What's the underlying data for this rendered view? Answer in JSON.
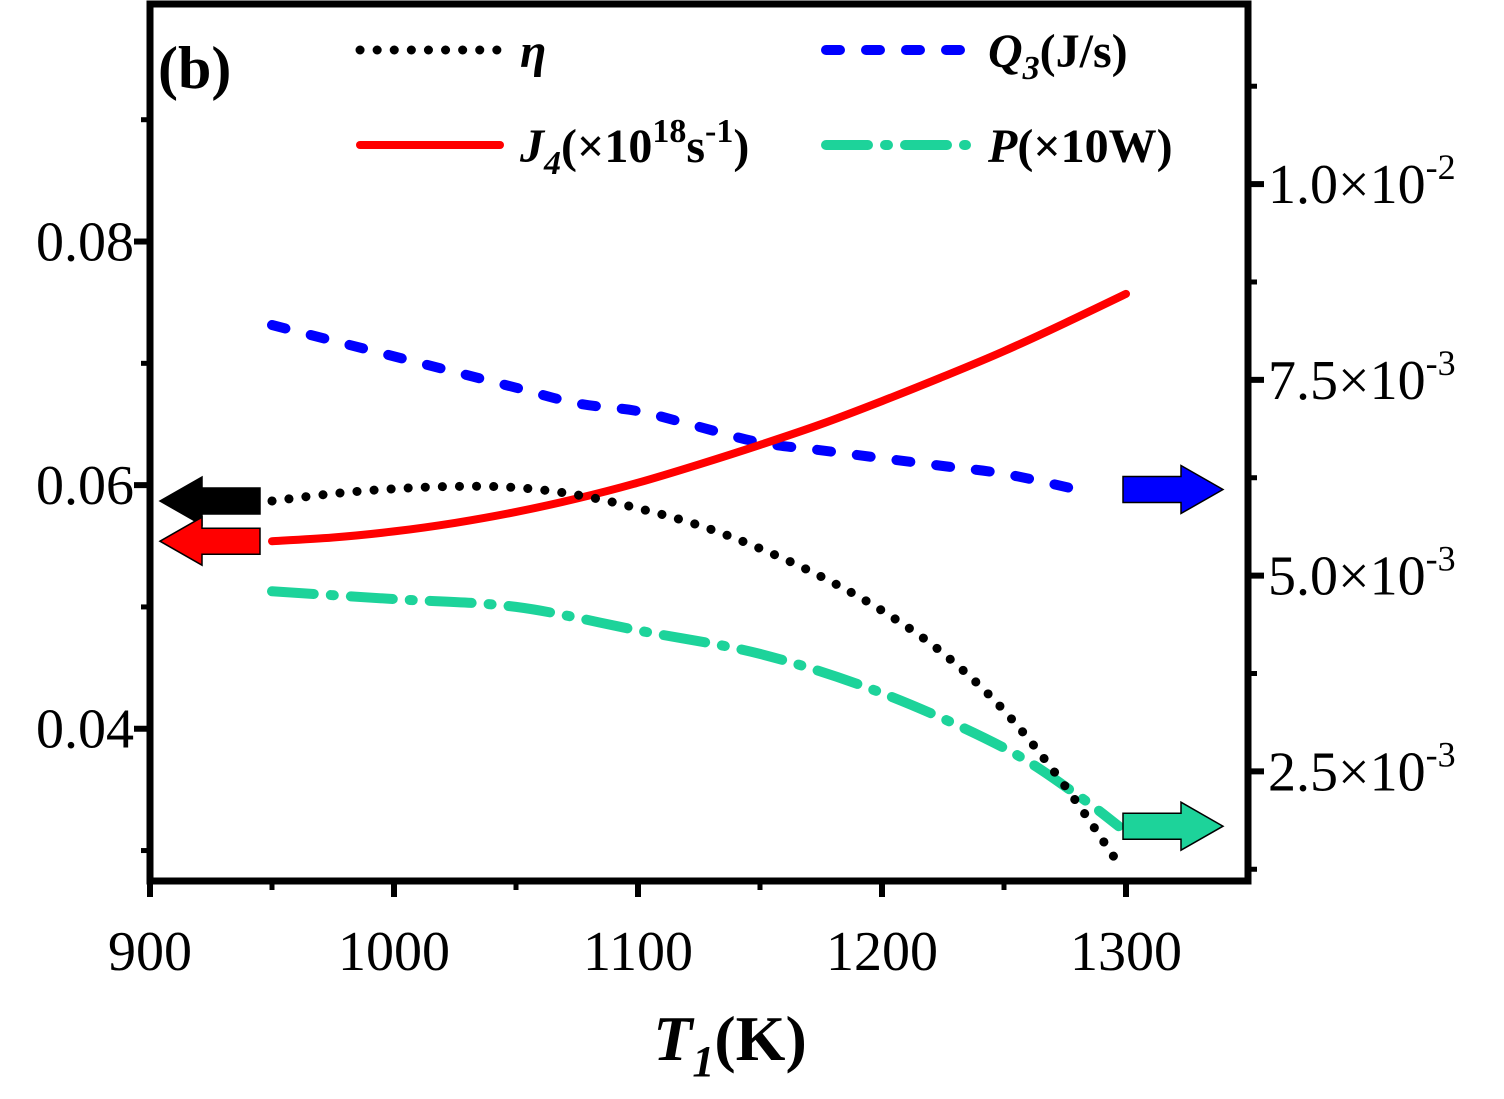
{
  "chart_data": {
    "type": "line",
    "panel_label": "(b)",
    "xlabel": {
      "main": "T",
      "sub": "1",
      "unit": "(K)"
    },
    "x_ticks": [
      900,
      1000,
      1100,
      1200,
      1300
    ],
    "xlim": [
      900,
      1350
    ],
    "ylim_left": [
      0.0275,
      0.0995
    ],
    "ylim_right": [
      0.0011,
      0.0123
    ],
    "left_ticks": [
      {
        "value": 0.04,
        "label": "0.04"
      },
      {
        "value": 0.06,
        "label": "0.06"
      },
      {
        "value": 0.08,
        "label": "0.08"
      }
    ],
    "right_ticks": [
      {
        "value": 0.0025,
        "mantissa": "2.5×10",
        "exponent": "-3"
      },
      {
        "value": 0.005,
        "mantissa": "5.0×10",
        "exponent": "-3"
      },
      {
        "value": 0.0075,
        "mantissa": "7.5×10",
        "exponent": "-3"
      },
      {
        "value": 0.01,
        "mantissa": "1.0×10",
        "exponent": "-2"
      }
    ],
    "series": [
      {
        "name": "eta",
        "axis": "left",
        "color": "#000000",
        "style": "dotted",
        "legend": {
          "main": "η",
          "sub": "",
          "rest": ""
        },
        "points": [
          [
            950,
            0.0587
          ],
          [
            975,
            0.0593
          ],
          [
            1000,
            0.0597
          ],
          [
            1025,
            0.0599
          ],
          [
            1050,
            0.0598
          ],
          [
            1075,
            0.0592
          ],
          [
            1100,
            0.0581
          ],
          [
            1125,
            0.0567
          ],
          [
            1150,
            0.0548
          ],
          [
            1175,
            0.0525
          ],
          [
            1200,
            0.0497
          ],
          [
            1225,
            0.0462
          ],
          [
            1250,
            0.0415
          ],
          [
            1275,
            0.0353
          ],
          [
            1297,
            0.0289
          ]
        ]
      },
      {
        "name": "Q3",
        "axis": "right",
        "color": "#0000ff",
        "style": "dashed",
        "legend": {
          "main": "Q",
          "sub": "3",
          "rest": "(J/s)"
        },
        "points": [
          [
            950,
            0.0082
          ],
          [
            975,
            0.008
          ],
          [
            1000,
            0.0078
          ],
          [
            1025,
            0.0076
          ],
          [
            1050,
            0.0074
          ],
          [
            1075,
            0.0072
          ],
          [
            1100,
            0.0071
          ],
          [
            1125,
            0.0069
          ],
          [
            1150,
            0.0067
          ],
          [
            1175,
            0.0066
          ],
          [
            1200,
            0.0065
          ],
          [
            1225,
            0.0064
          ],
          [
            1250,
            0.0063
          ],
          [
            1280,
            0.0061
          ]
        ]
      },
      {
        "name": "J4",
        "axis": "left",
        "color": "#ff0000",
        "style": "solid",
        "legend": {
          "main": "J",
          "sub": "4",
          "rest": "(×10",
          "sup": "18",
          "rest2": "s",
          "sup2": "-1",
          "rest3": ")"
        },
        "points": [
          [
            950,
            0.0554
          ],
          [
            975,
            0.0557
          ],
          [
            1000,
            0.0562
          ],
          [
            1025,
            0.0569
          ],
          [
            1050,
            0.0578
          ],
          [
            1075,
            0.0589
          ],
          [
            1100,
            0.0602
          ],
          [
            1125,
            0.0617
          ],
          [
            1150,
            0.0633
          ],
          [
            1175,
            0.065
          ],
          [
            1200,
            0.0669
          ],
          [
            1225,
            0.0689
          ],
          [
            1250,
            0.071
          ],
          [
            1275,
            0.0733
          ],
          [
            1300,
            0.0757
          ]
        ]
      },
      {
        "name": "P",
        "axis": "right",
        "color": "#1dd39a",
        "style": "dashdot",
        "legend": {
          "main": "P",
          "sub": "",
          "rest": "(×10W)"
        },
        "points": [
          [
            950,
            0.0048
          ],
          [
            1000,
            0.0047
          ],
          [
            1050,
            0.0046
          ],
          [
            1100,
            0.0043
          ],
          [
            1150,
            0.004
          ],
          [
            1200,
            0.0035
          ],
          [
            1250,
            0.0028
          ],
          [
            1280,
            0.0022
          ],
          [
            1297,
            0.0018
          ]
        ]
      }
    ],
    "indicator_arrows": [
      {
        "series": "eta",
        "direction": "left",
        "color": "#000000"
      },
      {
        "series": "J4",
        "direction": "left",
        "color": "#ff0000"
      },
      {
        "series": "Q3",
        "direction": "right",
        "color": "#0000ff"
      },
      {
        "series": "P",
        "direction": "right",
        "color": "#1dd39a"
      }
    ]
  }
}
